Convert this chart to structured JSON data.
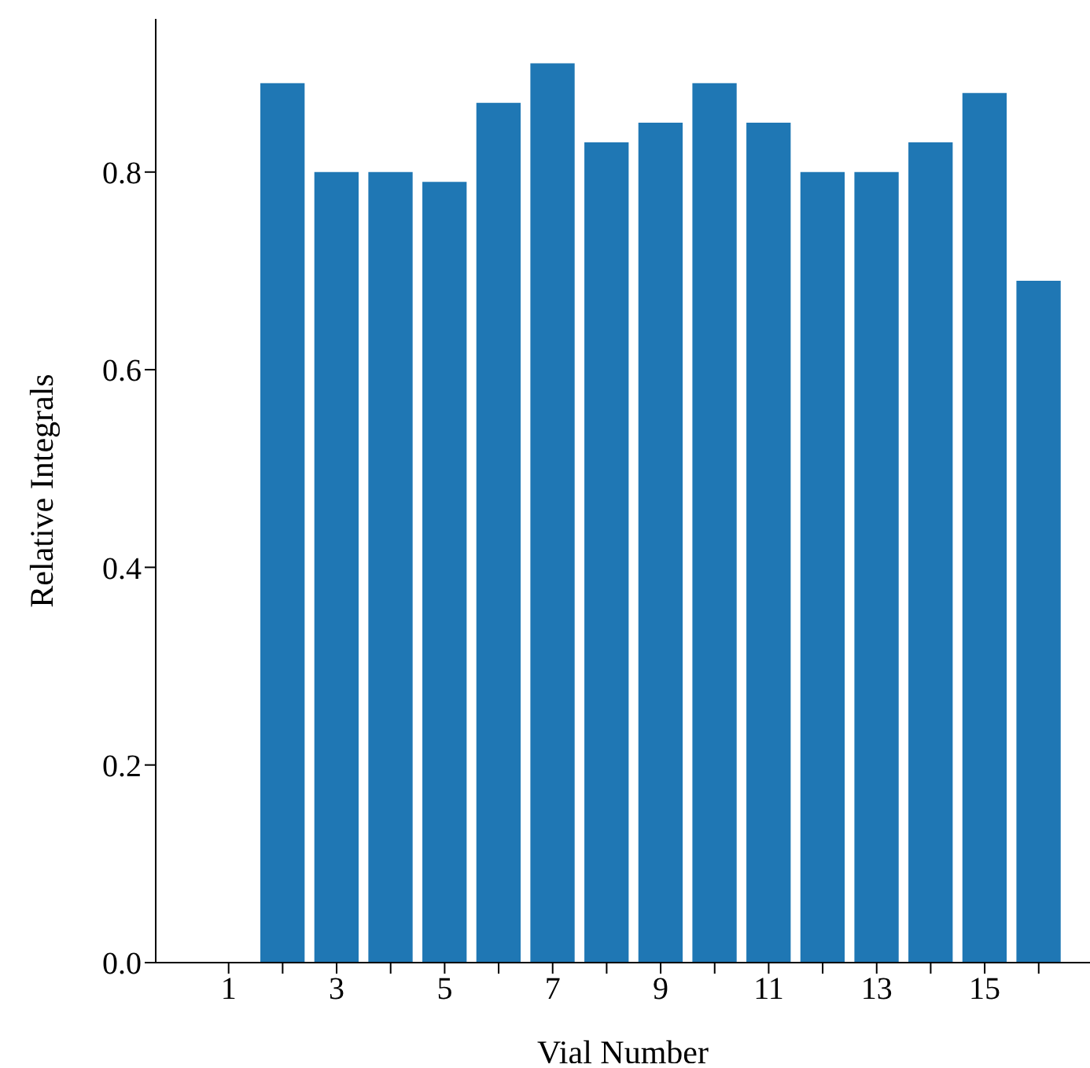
{
  "chart_data": {
    "type": "bar",
    "xlabel": "Vial Number",
    "ylabel": "Relative Integrals",
    "x": [
      1,
      2,
      3,
      4,
      5,
      6,
      7,
      8,
      9,
      10,
      11,
      12,
      13,
      14,
      15,
      16
    ],
    "values": [
      0,
      0.89,
      0.8,
      0.8,
      0.79,
      0.87,
      0.91,
      0.83,
      0.85,
      0.89,
      0.85,
      0.8,
      0.8,
      0.83,
      0.88,
      0.69
    ],
    "color": "#1f77b4",
    "xlim": [
      -0.35,
      16.95
    ],
    "xticks": [
      1,
      {
        "value": 2,
        "label": null
      },
      3,
      {
        "value": 4,
        "label": null
      },
      5,
      {
        "value": 6,
        "label": null
      },
      7,
      {
        "value": 8,
        "label": null
      },
      9,
      {
        "value": 10,
        "label": null
      },
      11,
      {
        "value": 12,
        "label": null
      },
      13,
      {
        "value": 14,
        "label": null
      },
      15,
      {
        "value": 16,
        "label": null
      }
    ],
    "ylim": [
      0,
      0.955
    ],
    "yticks": [
      {
        "value": 0,
        "label": "0.0"
      },
      {
        "value": 0.2,
        "label": "0.2"
      },
      {
        "value": 0.4,
        "label": "0.4"
      },
      {
        "value": 0.6,
        "label": "0.6"
      },
      {
        "value": 0.8,
        "label": "0.8"
      }
    ],
    "grid": false,
    "legend": false
  }
}
